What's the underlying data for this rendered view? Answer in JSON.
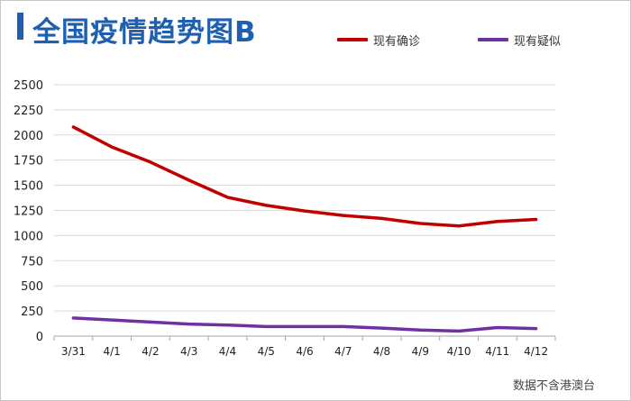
{
  "title": "全国疫情趋势图B",
  "footnote": "数据不含港澳台",
  "colors": {
    "title": "#1f5fb0",
    "confirmed": "#c00000",
    "suspected": "#7030a0",
    "grid": "#d9d9d9",
    "axis": "#a6a6a6"
  },
  "chart_data": {
    "type": "line",
    "categories": [
      "3/31",
      "4/1",
      "4/2",
      "4/3",
      "4/4",
      "4/5",
      "4/6",
      "4/7",
      "4/8",
      "4/9",
      "4/10",
      "4/11",
      "4/12"
    ],
    "series": [
      {
        "name": "现有确诊",
        "color": "#c00000",
        "values": [
          2080,
          1880,
          1730,
          1550,
          1380,
          1300,
          1245,
          1200,
          1170,
          1120,
          1095,
          1140,
          1160
        ]
      },
      {
        "name": "现有疑似",
        "color": "#7030a0",
        "values": [
          180,
          160,
          140,
          120,
          110,
          95,
          95,
          95,
          80,
          60,
          50,
          85,
          75
        ]
      }
    ],
    "y_ticks": [
      0,
      250,
      500,
      750,
      1000,
      1250,
      1500,
      1750,
      2000,
      2250,
      2500
    ],
    "ylim": [
      0,
      2500
    ],
    "grid": true,
    "legend_position": "top-right"
  }
}
